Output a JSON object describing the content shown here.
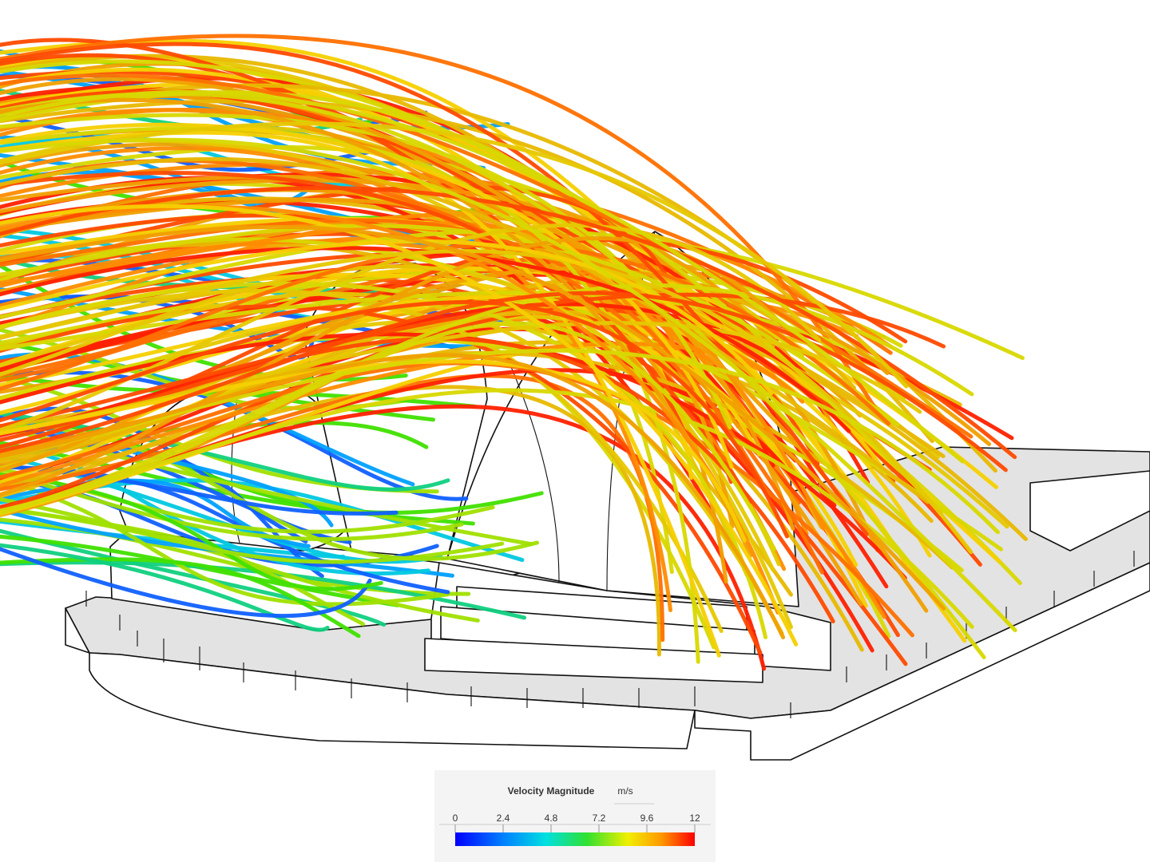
{
  "legend": {
    "title": "Velocity Magnitude",
    "unit": "m/s",
    "ticks": [
      0,
      2.4,
      4.8,
      7.2,
      9.6,
      12
    ]
  }
}
